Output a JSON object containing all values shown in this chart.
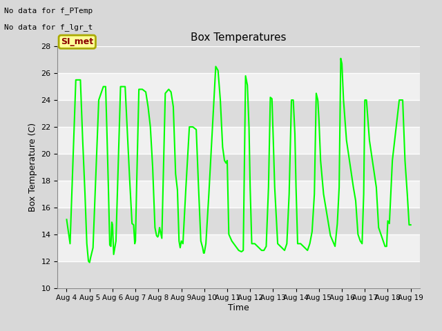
{
  "title": "Box Temperatures",
  "xlabel": "Time",
  "ylabel": "Box Temperature (C)",
  "ylim": [
    10,
    28
  ],
  "yticks": [
    10,
    12,
    14,
    16,
    18,
    20,
    22,
    24,
    26,
    28
  ],
  "line_color": "#00FF00",
  "line_width": 1.5,
  "fig_bg_color": "#D8D8D8",
  "plot_bg_color": "#FFFFFF",
  "band_color_dark": "#DCDCDC",
  "band_color_light": "#F0F0F0",
  "grid_color": "#FFFFFF",
  "text_no_data1": "No data for f_PTemp",
  "text_no_data2": "No data for f_lgr_t",
  "legend_line_color": "#00FF00",
  "box_label": "SI_met",
  "box_label_color": "#8B0000",
  "box_bg_color": "#FFFF99",
  "box_border_color": "#AAAA00",
  "x_dates": [
    "Aug 4",
    "Aug 5",
    "Aug 6",
    "Aug 7",
    "Aug 8",
    "Aug 9",
    "Aug 10",
    "Aug 11",
    "Aug 12",
    "Aug 13",
    "Aug 14",
    "Aug 15",
    "Aug 16",
    "Aug 17",
    "Aug 18",
    "Aug 19"
  ],
  "x_positions": [
    0,
    1,
    2,
    3,
    4,
    5,
    6,
    7,
    8,
    9,
    10,
    11,
    12,
    13,
    14,
    15
  ],
  "data_x": [
    0.0,
    0.15,
    0.4,
    0.6,
    0.7,
    0.8,
    0.88,
    0.95,
    1.0,
    1.05,
    1.15,
    1.4,
    1.6,
    1.7,
    1.75,
    1.82,
    1.88,
    1.93,
    1.97,
    2.0,
    2.05,
    2.15,
    2.35,
    2.55,
    2.65,
    2.75,
    2.85,
    2.92,
    2.97,
    3.0,
    3.05,
    3.15,
    3.3,
    3.45,
    3.55,
    3.65,
    3.75,
    3.85,
    3.92,
    3.97,
    4.0,
    4.05,
    4.15,
    4.3,
    4.45,
    4.55,
    4.65,
    4.75,
    4.83,
    4.9,
    4.95,
    5.0,
    5.07,
    5.2,
    5.35,
    5.5,
    5.65,
    5.75,
    5.85,
    5.93,
    5.97,
    6.0,
    6.07,
    6.2,
    6.5,
    6.6,
    6.7,
    6.8,
    6.88,
    6.95,
    7.0,
    7.07,
    7.2,
    7.5,
    7.62,
    7.7,
    7.8,
    7.88,
    7.95,
    8.0,
    8.07,
    8.2,
    8.5,
    8.6,
    8.7,
    8.8,
    8.88,
    8.95,
    9.0,
    9.07,
    9.2,
    9.5,
    9.6,
    9.7,
    9.8,
    9.88,
    9.95,
    10.0,
    10.07,
    10.2,
    10.5,
    10.6,
    10.7,
    10.8,
    10.88,
    10.95,
    11.0,
    11.07,
    11.2,
    11.5,
    11.6,
    11.7,
    11.8,
    11.88,
    11.95,
    12.0,
    12.07,
    12.2,
    12.5,
    12.6,
    12.7,
    12.8,
    12.88,
    12.95,
    13.0,
    13.07,
    13.2,
    13.5,
    13.6,
    13.7,
    13.8,
    13.88,
    13.95,
    14.0,
    14.07,
    14.2,
    14.5,
    14.65,
    14.75,
    14.85,
    14.93,
    15.0
  ],
  "data_y": [
    15.1,
    13.3,
    25.5,
    25.5,
    21.0,
    17.0,
    13.3,
    12.0,
    11.9,
    12.3,
    13.0,
    24.0,
    25.0,
    25.0,
    22.0,
    17.5,
    13.2,
    13.1,
    14.9,
    14.7,
    12.5,
    13.5,
    25.0,
    25.0,
    21.5,
    18.0,
    14.8,
    14.7,
    13.3,
    13.5,
    17.5,
    24.8,
    24.8,
    24.6,
    23.5,
    22.0,
    19.0,
    14.5,
    13.9,
    13.8,
    13.9,
    14.5,
    13.7,
    24.5,
    24.8,
    24.6,
    23.5,
    18.5,
    17.3,
    13.5,
    13.0,
    13.5,
    13.3,
    17.5,
    22.0,
    22.0,
    21.8,
    17.5,
    13.5,
    13.0,
    12.6,
    12.6,
    13.3,
    17.0,
    26.5,
    26.2,
    24.0,
    20.5,
    19.5,
    19.3,
    19.5,
    14.0,
    13.5,
    12.8,
    12.7,
    12.8,
    25.8,
    25.1,
    22.0,
    17.5,
    13.3,
    13.3,
    12.8,
    12.8,
    13.1,
    17.5,
    24.2,
    24.1,
    21.5,
    17.5,
    13.3,
    12.8,
    13.3,
    17.0,
    24.0,
    24.0,
    21.5,
    17.5,
    13.3,
    13.3,
    12.8,
    13.3,
    14.2,
    17.0,
    24.5,
    24.0,
    22.5,
    19.5,
    17.0,
    13.9,
    13.5,
    13.1,
    14.8,
    17.5,
    27.1,
    26.7,
    24.0,
    21.0,
    17.5,
    16.5,
    14.0,
    13.5,
    13.3,
    17.0,
    24.0,
    24.0,
    21.0,
    17.5,
    14.5,
    14.0,
    13.5,
    13.1,
    13.1,
    15.0,
    14.8,
    19.5,
    24.0,
    24.0,
    19.5,
    17.0,
    14.7,
    14.7
  ]
}
